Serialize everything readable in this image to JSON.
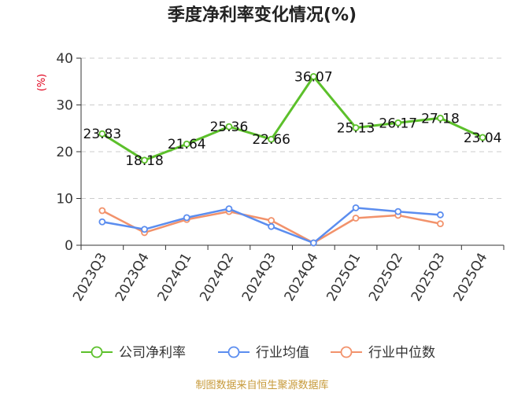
{
  "chart_data": {
    "type": "line",
    "title": "季度净利率变化情况(%)",
    "unit_label": "(%)",
    "categories": [
      "2023Q3",
      "2023Q4",
      "2024Q1",
      "2024Q2",
      "2024Q3",
      "2024Q4",
      "2025Q1",
      "2025Q2",
      "2025Q3",
      "2025Q4"
    ],
    "ylim": [
      0,
      40
    ],
    "yticks": [
      0,
      10,
      20,
      30,
      40
    ],
    "grid": true,
    "legend_position": "bottom",
    "series": [
      {
        "name": "公司净利率",
        "color": "#5cc02b",
        "values": [
          23.83,
          18.18,
          21.64,
          25.36,
          22.66,
          36.07,
          25.13,
          26.17,
          27.18,
          23.04
        ],
        "labels": [
          "23.83",
          "18.18",
          "21.64",
          "25.36",
          "22.66",
          "36.07",
          "25.13",
          "26.17",
          "27.18",
          "23.04"
        ]
      },
      {
        "name": "行业均值",
        "color": "#5b8def",
        "values": [
          5.0,
          3.4,
          5.9,
          7.8,
          4.0,
          0.5,
          8.0,
          7.2,
          6.5,
          null
        ]
      },
      {
        "name": "行业中位数",
        "color": "#f2926b",
        "values": [
          7.4,
          2.7,
          5.5,
          7.2,
          5.3,
          0.5,
          5.8,
          6.4,
          4.6,
          null
        ]
      }
    ],
    "source": "制图数据来自恒生聚源数据库"
  }
}
